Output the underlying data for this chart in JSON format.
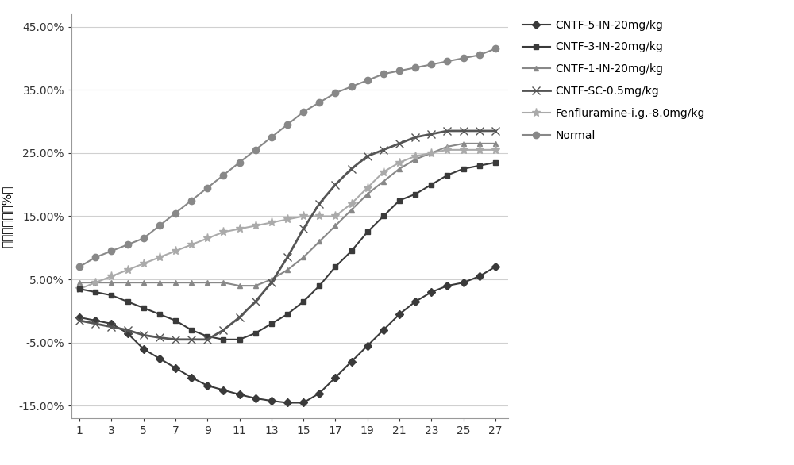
{
  "x": [
    1,
    2,
    3,
    4,
    5,
    6,
    7,
    8,
    9,
    10,
    11,
    12,
    13,
    14,
    15,
    16,
    17,
    18,
    19,
    20,
    21,
    22,
    23,
    24,
    25,
    26,
    27
  ],
  "series": [
    {
      "name": "CNTF-5-IN-20mg/kg",
      "color": "#3a3a3a",
      "marker": "D",
      "markersize": 5,
      "linewidth": 1.5,
      "zorder": 3,
      "values": [
        -1.0,
        -1.5,
        -2.0,
        -3.5,
        -6.0,
        -7.5,
        -9.0,
        -10.5,
        -11.8,
        -12.5,
        -13.2,
        -13.8,
        -14.2,
        -14.5,
        -14.5,
        -13.0,
        -10.5,
        -8.0,
        -5.5,
        -3.0,
        -0.5,
        1.5,
        3.0,
        4.0,
        4.5,
        5.5,
        7.0
      ]
    },
    {
      "name": "CNTF-3-IN-20mg/kg",
      "color": "#3a3a3a",
      "marker": "s",
      "markersize": 5,
      "linewidth": 1.5,
      "zorder": 3,
      "values": [
        3.5,
        3.0,
        2.5,
        1.5,
        0.5,
        -0.5,
        -1.5,
        -3.0,
        -4.0,
        -4.5,
        -4.5,
        -3.5,
        -2.0,
        -0.5,
        1.5,
        4.0,
        7.0,
        9.5,
        12.5,
        15.0,
        17.5,
        18.5,
        20.0,
        21.5,
        22.5,
        23.0,
        23.5
      ]
    },
    {
      "name": "CNTF-1-IN-20mg/kg",
      "color": "#888888",
      "marker": "^",
      "markersize": 5,
      "linewidth": 1.5,
      "zorder": 2,
      "values": [
        4.5,
        4.5,
        4.5,
        4.5,
        4.5,
        4.5,
        4.5,
        4.5,
        4.5,
        4.5,
        4.0,
        4.0,
        5.0,
        6.5,
        8.5,
        11.0,
        13.5,
        16.0,
        18.5,
        20.5,
        22.5,
        24.0,
        25.0,
        26.0,
        26.5,
        26.5,
        26.5
      ]
    },
    {
      "name": "CNTF-SC-0.5mg/kg",
      "color": "#555555",
      "marker": "x",
      "markersize": 7,
      "linewidth": 2.0,
      "zorder": 4,
      "values": [
        -1.5,
        -2.0,
        -2.5,
        -3.0,
        -3.8,
        -4.2,
        -4.5,
        -4.5,
        -4.5,
        -3.0,
        -1.0,
        1.5,
        4.5,
        8.5,
        13.0,
        17.0,
        20.0,
        22.5,
        24.5,
        25.5,
        26.5,
        27.5,
        28.0,
        28.5,
        28.5,
        28.5,
        28.5
      ]
    },
    {
      "name": "Fenfluramine-i.g.-8.0mg/kg",
      "color": "#aaaaaa",
      "marker": "*",
      "markersize": 8,
      "linewidth": 1.5,
      "zorder": 2,
      "values": [
        3.5,
        4.5,
        5.5,
        6.5,
        7.5,
        8.5,
        9.5,
        10.5,
        11.5,
        12.5,
        13.0,
        13.5,
        14.0,
        14.5,
        15.0,
        15.0,
        15.0,
        17.0,
        19.5,
        22.0,
        23.5,
        24.5,
        25.0,
        25.5,
        25.5,
        25.5,
        25.5
      ]
    },
    {
      "name": "Normal",
      "color": "#888888",
      "marker": "o",
      "markersize": 6,
      "linewidth": 1.5,
      "zorder": 2,
      "values": [
        7.0,
        8.5,
        9.5,
        10.5,
        11.5,
        13.5,
        15.5,
        17.5,
        19.5,
        21.5,
        23.5,
        25.5,
        27.5,
        29.5,
        31.5,
        33.0,
        34.5,
        35.5,
        36.5,
        37.5,
        38.0,
        38.5,
        39.0,
        39.5,
        40.0,
        40.5,
        41.5
      ]
    }
  ],
  "ylabel": "体重变化率（%）",
  "ylim": [
    -17,
    47
  ],
  "yticks": [
    -15,
    -5,
    5,
    15,
    25,
    35,
    45
  ],
  "ytick_labels": [
    "-15.00%",
    "-5.00%",
    "5.00%",
    "15.00%",
    "25.00%",
    "35.00%",
    "45.00%"
  ],
  "xticks": [
    1,
    3,
    5,
    7,
    9,
    11,
    13,
    15,
    17,
    19,
    21,
    23,
    25,
    27
  ],
  "background_color": "#ffffff"
}
